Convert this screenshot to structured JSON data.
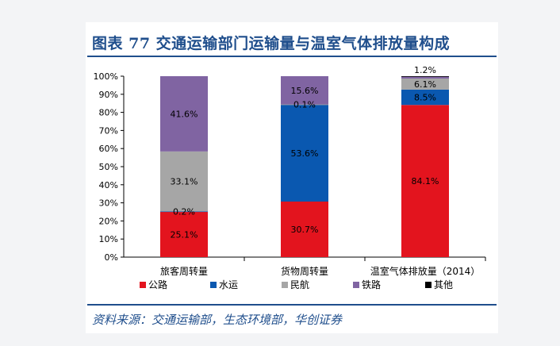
{
  "header": {
    "title": "图表 77   交通运输部门运输量与温室气体排放量构成"
  },
  "footer": {
    "source": "资料来源：交通运输部，生态环境部，华创证券"
  },
  "chart_data": {
    "type": "bar",
    "stacked": true,
    "title": "图表 77   交通运输部门运输量与温室气体排放量构成",
    "categories": [
      "旅客周转量",
      "货物周转量",
      "温室气体排放量（2014）"
    ],
    "ylim": [
      0,
      100
    ],
    "yticks": [
      0,
      10,
      20,
      30,
      40,
      50,
      60,
      70,
      80,
      90,
      100
    ],
    "ytick_labels": [
      "0%",
      "10%",
      "20%",
      "30%",
      "40%",
      "50%",
      "60%",
      "70%",
      "80%",
      "90%",
      "100%"
    ],
    "xlabel": "",
    "ylabel": "",
    "legend_position": "bottom",
    "series": [
      {
        "name": "公路",
        "color": "#e3141e",
        "values": [
          25.1,
          30.7,
          84.1
        ],
        "labels": [
          "25.1%",
          "30.7%",
          "84.1%"
        ]
      },
      {
        "name": "水运",
        "color": "#0a58b0",
        "values": [
          0.2,
          53.6,
          8.5
        ],
        "labels": [
          "0.2%",
          "53.6%",
          "8.5%"
        ]
      },
      {
        "name": "民航",
        "color": "#a6a6a6",
        "values": [
          33.1,
          0.1,
          6.1
        ],
        "labels": [
          "33.1%",
          "0.1%",
          "6.1%"
        ]
      },
      {
        "name": "铁路",
        "color": "#8064a2",
        "values": [
          41.6,
          15.6,
          1.2
        ],
        "labels": [
          "41.6%",
          "15.6%",
          "1.2%"
        ]
      },
      {
        "name": "其他",
        "color": "#000000",
        "values": [
          0,
          0,
          0.1
        ],
        "labels": [
          "",
          "",
          ""
        ]
      }
    ]
  }
}
